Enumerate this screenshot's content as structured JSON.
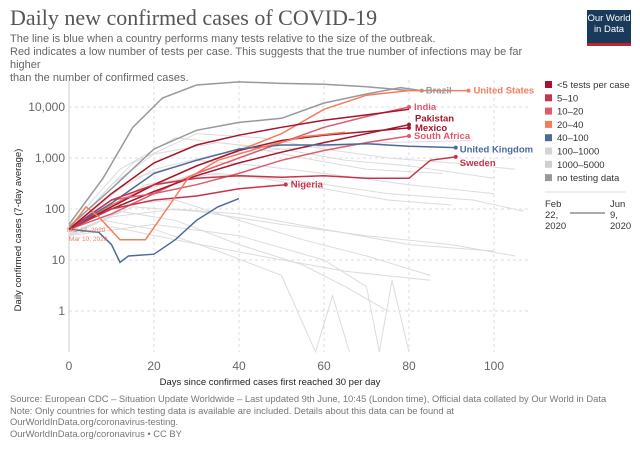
{
  "title": "Daily new confirmed cases of COVID-19",
  "subtitle": "The line is blue when a country performs many tests relative to the size of the outbreak.\n Red indicates a low number of tests per case. This suggests that the true number of infections may be far higher\nthan the number of confirmed cases.",
  "logo": "Our World in Data",
  "footer": "Source: European CDC – Situation Update Worldwide – Last updated 9th June, 10:45 (London time), Official data collated by Our World in Data\nNote: Only countries for which testing data is available are included. Details about this data can be found at\nOurWorldInData.org/coronavirus-testing.\nOurWorldInData.org/coronavirus • CC BY",
  "chart_data": {
    "type": "line",
    "title": "Daily new confirmed cases of COVID-19",
    "xlabel": "Days since confirmed cases first reached 30 per day",
    "ylabel": "Daily confirmed cases (7-day average)",
    "xlim": [
      0,
      108
    ],
    "ylim": [
      0.1,
      40000
    ],
    "yscale": "log",
    "grid": true,
    "x_ticks": [
      "0",
      "20",
      "40",
      "60",
      "80",
      "100"
    ],
    "x_tick_values": [
      0,
      20,
      40,
      60,
      80,
      100
    ],
    "y_ticks": [
      "10,000",
      "1,000",
      "100",
      "10",
      "1"
    ],
    "y_tick_values": [
      10000,
      1000,
      100,
      10,
      1
    ],
    "legend_position": "right",
    "legend": [
      {
        "label": "<5 tests per case",
        "color": "#a5152c"
      },
      {
        "label": "5–10",
        "color": "#c8334a"
      },
      {
        "label": "10–20",
        "color": "#e05a6e"
      },
      {
        "label": "20–40",
        "color": "#f47c5c"
      },
      {
        "label": "40–100",
        "color": "#4c6a9c"
      },
      {
        "label": "100–1000",
        "color": "#d4d4d4",
        "faded": true
      },
      {
        "label": "1000–5000",
        "color": "#cfcfcf",
        "faded": true
      },
      {
        "label": "no testing data",
        "color": "#999999"
      }
    ],
    "timeline": {
      "start": "Feb\n22,\n2020",
      "end": "Jun\n9,\n2020"
    },
    "annotations": [
      "Mar 13, 2020",
      "Mar 10, 2020"
    ],
    "series": [
      {
        "name": "Brazil",
        "color": "#999999",
        "points": [
          [
            0,
            45
          ],
          [
            10,
            250
          ],
          [
            20,
            1500
          ],
          [
            30,
            3500
          ],
          [
            40,
            5000
          ],
          [
            50,
            6000
          ],
          [
            60,
            12000
          ],
          [
            70,
            18000
          ],
          [
            78,
            24000
          ],
          [
            83,
            21000
          ]
        ]
      },
      {
        "color": "#999999",
        "points": [
          [
            0,
            50
          ],
          [
            8,
            400
          ],
          [
            15,
            4000
          ],
          [
            22,
            15000
          ],
          [
            30,
            27000
          ],
          [
            40,
            31000
          ],
          [
            50,
            29000
          ],
          [
            60,
            28000
          ],
          [
            70,
            25000
          ],
          [
            80,
            21000
          ]
        ]
      },
      {
        "name": "United States",
        "color": "#f47c5c",
        "points": [
          [
            0,
            40
          ],
          [
            10,
            120
          ],
          [
            20,
            300
          ],
          [
            30,
            700
          ],
          [
            40,
            1400
          ],
          [
            50,
            3000
          ],
          [
            60,
            9000
          ],
          [
            70,
            17000
          ],
          [
            80,
            21000
          ],
          [
            94,
            21000
          ]
        ]
      },
      {
        "name": "India",
        "color": "#e05a6e",
        "points": [
          [
            0,
            40
          ],
          [
            10,
            80
          ],
          [
            20,
            200
          ],
          [
            30,
            500
          ],
          [
            40,
            1000
          ],
          [
            50,
            2000
          ],
          [
            60,
            4000
          ],
          [
            70,
            6500
          ],
          [
            80,
            10000
          ]
        ]
      },
      {
        "name": "Pakistan",
        "color": "#a5152c",
        "points": [
          [
            0,
            40
          ],
          [
            10,
            100
          ],
          [
            20,
            220
          ],
          [
            30,
            450
          ],
          [
            40,
            800
          ],
          [
            50,
            1300
          ],
          [
            60,
            2000
          ],
          [
            70,
            3000
          ],
          [
            80,
            4500
          ]
        ]
      },
      {
        "name": "Mexico",
        "color": "#a5152c",
        "points": [
          [
            0,
            40
          ],
          [
            10,
            110
          ],
          [
            20,
            300
          ],
          [
            30,
            700
          ],
          [
            40,
            1400
          ],
          [
            50,
            2200
          ],
          [
            60,
            2800
          ],
          [
            70,
            3300
          ],
          [
            80,
            3900
          ]
        ]
      },
      {
        "name": "South Africa",
        "color": "#e05a6e",
        "points": [
          [
            0,
            40
          ],
          [
            10,
            150
          ],
          [
            20,
            200
          ],
          [
            30,
            300
          ],
          [
            40,
            500
          ],
          [
            50,
            900
          ],
          [
            60,
            1400
          ],
          [
            70,
            2000
          ],
          [
            80,
            2700
          ]
        ]
      },
      {
        "name": "United Kingdom",
        "color": "#4c6a9c",
        "points": [
          [
            0,
            40
          ],
          [
            10,
            130
          ],
          [
            20,
            500
          ],
          [
            30,
            900
          ],
          [
            40,
            1500
          ],
          [
            50,
            1800
          ],
          [
            60,
            1800
          ],
          [
            70,
            1900
          ],
          [
            80,
            1700
          ],
          [
            91,
            1600
          ]
        ]
      },
      {
        "name": "Sweden",
        "color": "#c8334a",
        "points": [
          [
            0,
            40
          ],
          [
            10,
            150
          ],
          [
            20,
            300
          ],
          [
            30,
            400
          ],
          [
            40,
            450
          ],
          [
            50,
            420
          ],
          [
            60,
            450
          ],
          [
            70,
            400
          ],
          [
            80,
            400
          ],
          [
            85,
            900
          ],
          [
            91,
            1050
          ]
        ]
      },
      {
        "name": "Nigeria",
        "color": "#c8334a",
        "points": [
          [
            0,
            40
          ],
          [
            10,
            100
          ],
          [
            20,
            150
          ],
          [
            30,
            180
          ],
          [
            40,
            250
          ],
          [
            51,
            300
          ]
        ]
      },
      {
        "color": "#4c6a9c",
        "points": [
          [
            0,
            40
          ],
          [
            7,
            35
          ],
          [
            10,
            20
          ],
          [
            12,
            9
          ],
          [
            14,
            12
          ],
          [
            20,
            13
          ],
          [
            25,
            25
          ],
          [
            30,
            60
          ],
          [
            35,
            110
          ],
          [
            40,
            160
          ]
        ]
      },
      {
        "color": "#f47c5c",
        "points": [
          [
            0,
            40
          ],
          [
            4,
            110
          ],
          [
            7,
            70
          ],
          [
            12,
            25
          ],
          [
            18,
            25
          ],
          [
            23,
            100
          ],
          [
            28,
            400
          ],
          [
            35,
            900
          ],
          [
            45,
            1600
          ],
          [
            55,
            2600
          ],
          [
            65,
            3200
          ]
        ]
      },
      {
        "color": "#a5152c",
        "points": [
          [
            0,
            40
          ],
          [
            10,
            200
          ],
          [
            20,
            800
          ],
          [
            30,
            1800
          ],
          [
            40,
            2800
          ],
          [
            50,
            4000
          ],
          [
            60,
            5500
          ],
          [
            70,
            7000
          ],
          [
            80,
            9000
          ]
        ]
      }
    ],
    "background_series": [
      [
        [
          0,
          35
        ],
        [
          15,
          200
        ],
        [
          30,
          500
        ],
        [
          45,
          400
        ],
        [
          60,
          250
        ],
        [
          75,
          150
        ],
        [
          90,
          120
        ]
      ],
      [
        [
          0,
          40
        ],
        [
          10,
          300
        ],
        [
          20,
          1200
        ],
        [
          35,
          2000
        ],
        [
          50,
          1500
        ],
        [
          65,
          900
        ],
        [
          80,
          700
        ],
        [
          100,
          400
        ]
      ],
      [
        [
          0,
          30
        ],
        [
          12,
          90
        ],
        [
          25,
          60
        ],
        [
          40,
          20
        ],
        [
          55,
          8
        ],
        [
          65,
          3
        ],
        [
          75,
          1
        ]
      ],
      [
        [
          0,
          35
        ],
        [
          10,
          120
        ],
        [
          25,
          150
        ],
        [
          40,
          60
        ],
        [
          55,
          25
        ],
        [
          70,
          12
        ],
        [
          85,
          5
        ]
      ],
      [
        [
          0,
          40
        ],
        [
          15,
          800
        ],
        [
          30,
          3000
        ],
        [
          45,
          2500
        ],
        [
          60,
          1500
        ],
        [
          75,
          1000
        ],
        [
          90,
          800
        ],
        [
          105,
          600
        ]
      ],
      [
        [
          0,
          30
        ],
        [
          8,
          60
        ],
        [
          20,
          40
        ],
        [
          35,
          15
        ],
        [
          50,
          5
        ],
        [
          58,
          0.1
        ],
        [
          62,
          2
        ],
        [
          66,
          0.1
        ]
      ],
      [
        [
          0,
          38
        ],
        [
          15,
          400
        ],
        [
          30,
          900
        ],
        [
          45,
          700
        ],
        [
          60,
          500
        ],
        [
          80,
          300
        ],
        [
          100,
          200
        ]
      ],
      [
        [
          0,
          32
        ],
        [
          10,
          70
        ],
        [
          25,
          100
        ],
        [
          40,
          80
        ],
        [
          60,
          40
        ],
        [
          80,
          20
        ],
        [
          100,
          15
        ]
      ],
      [
        [
          0,
          45
        ],
        [
          12,
          600
        ],
        [
          25,
          2500
        ],
        [
          40,
          1800
        ],
        [
          55,
          1000
        ],
        [
          70,
          600
        ],
        [
          88,
          500
        ]
      ],
      [
        [
          0,
          30
        ],
        [
          20,
          50
        ],
        [
          40,
          30
        ],
        [
          60,
          10
        ],
        [
          70,
          3
        ],
        [
          73,
          0.1
        ],
        [
          76,
          4
        ],
        [
          80,
          0.1
        ]
      ],
      [
        [
          0,
          36
        ],
        [
          18,
          300
        ],
        [
          35,
          500
        ],
        [
          55,
          350
        ],
        [
          75,
          200
        ],
        [
          95,
          150
        ],
        [
          107,
          90
        ]
      ],
      [
        [
          0,
          33
        ],
        [
          15,
          110
        ],
        [
          30,
          90
        ],
        [
          50,
          50
        ],
        [
          70,
          30
        ],
        [
          90,
          20
        ],
        [
          105,
          12
        ]
      ],
      [
        [
          0,
          42
        ],
        [
          10,
          200
        ],
        [
          20,
          600
        ],
        [
          35,
          1200
        ],
        [
          55,
          1600
        ],
        [
          75,
          2000
        ],
        [
          95,
          2200
        ]
      ],
      [
        [
          0,
          31
        ],
        [
          10,
          45
        ],
        [
          25,
          25
        ],
        [
          45,
          12
        ],
        [
          65,
          6
        ],
        [
          85,
          4
        ]
      ]
    ]
  }
}
